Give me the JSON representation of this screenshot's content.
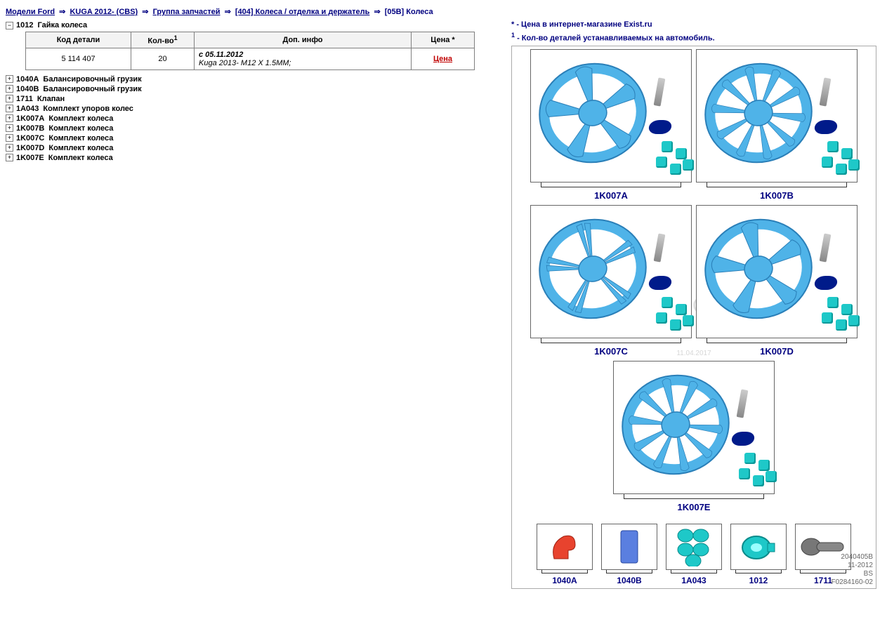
{
  "breadcrumb": {
    "items": [
      "Модели Ford",
      "KUGA 2012- (CBS)",
      "Группа запчастей",
      "[404] Колеса / отделка и держатель",
      "[05B] Колеса"
    ],
    "sep": "⇒"
  },
  "tree": {
    "expanded": {
      "code": "1012",
      "name": "Гайка колеса"
    },
    "items": [
      {
        "code": "1040A",
        "name": "Балансировочный грузик"
      },
      {
        "code": "1040B",
        "name": "Балансировочный грузик"
      },
      {
        "code": "1711",
        "name": "Клапан"
      },
      {
        "code": "1A043",
        "name": "Комплект упоров колес"
      },
      {
        "code": "1K007A",
        "name": "Комплект колеса"
      },
      {
        "code": "1K007B",
        "name": "Комплект колеса"
      },
      {
        "code": "1K007C",
        "name": "Комплект колеса"
      },
      {
        "code": "1K007D",
        "name": "Комплект колеса"
      },
      {
        "code": "1K007E",
        "name": "Комплект колеса"
      }
    ]
  },
  "table": {
    "headers": {
      "part_code": "Код детали",
      "qty": "Кол-во",
      "qty_note": "1",
      "info": "Доп. инфо",
      "price": "Цена *"
    },
    "rows": [
      {
        "part_code": "5 114 407",
        "qty": "20",
        "info_date": "с 05.11.2012",
        "info_text": "Kuga 2013- M12 X 1.5MM;",
        "price": "Цена"
      }
    ]
  },
  "notes": {
    "star": "* - Цена в интернет-магазине Exist.ru",
    "one": "1 - Кол-во деталей устанавливаемых на автомобиль."
  },
  "diagram": {
    "wheel_color": "#4fb3e8",
    "hub_color": "#2a7fb8",
    "nut_color": "#1ec8c8",
    "cap_color": "#001b8a",
    "wheels": [
      {
        "label": "1K007A"
      },
      {
        "label": "1K007B"
      },
      {
        "label": "1K007C"
      },
      {
        "label": "1K007D"
      },
      {
        "label": "1K007E"
      }
    ],
    "small": [
      {
        "label": "1040A",
        "kind": "chock"
      },
      {
        "label": "1040B",
        "kind": "weight"
      },
      {
        "label": "1A043",
        "kind": "nuts"
      },
      {
        "label": "1012",
        "kind": "bignut"
      },
      {
        "label": "1711",
        "kind": "valve"
      }
    ],
    "watermark": "WWW.ELCATS.RU",
    "wm_date": "11.04.2017",
    "meta": [
      "2040405B",
      "11-2012",
      "BS",
      "F0284160-02"
    ]
  },
  "icons": {
    "plus": "+",
    "minus": "−"
  }
}
